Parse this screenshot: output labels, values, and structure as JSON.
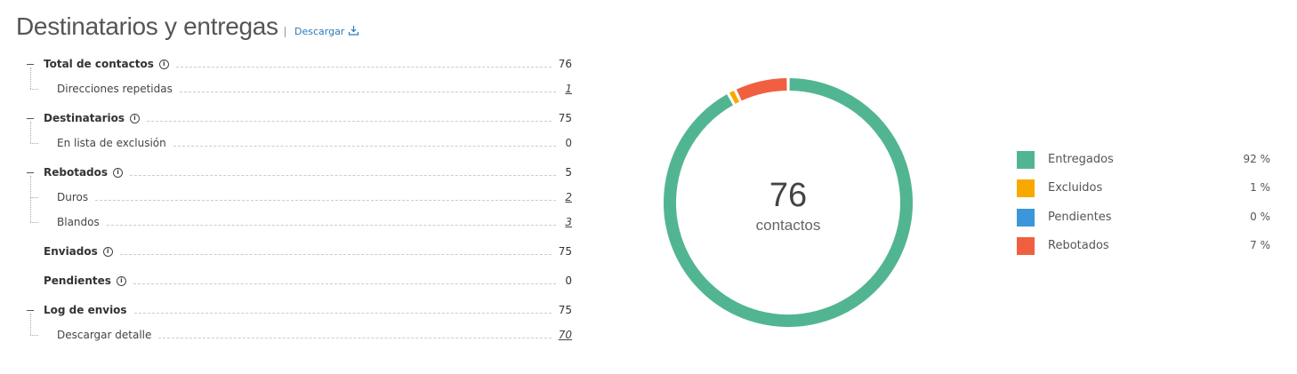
{
  "header": {
    "title": "Destinatarios y entregas",
    "download": "Descargar"
  },
  "metrics": [
    {
      "label": "Total de contactos",
      "value": 76,
      "info": true,
      "children": [
        {
          "label": "Direcciones repetidas",
          "value": 1,
          "link": true
        }
      ]
    },
    {
      "label": "Destinatarios",
      "value": 75,
      "info": true,
      "children": [
        {
          "label": "En lista de exclusión",
          "value": 0,
          "link": false
        }
      ]
    },
    {
      "label": "Rebotados",
      "value": 5,
      "info": true,
      "children": [
        {
          "label": "Duros",
          "value": 2,
          "link": true
        },
        {
          "label": "Blandos",
          "value": 3,
          "link": true
        }
      ]
    },
    {
      "label": "Enviados",
      "value": 75,
      "info": true,
      "children": []
    },
    {
      "label": "Pendientes",
      "value": 0,
      "info": true,
      "children": []
    },
    {
      "label": "Log de envios",
      "value": 75,
      "info": false,
      "children": [
        {
          "label": "Descargar detalle",
          "value": 70,
          "link": true
        }
      ]
    }
  ],
  "chart_data": {
    "type": "donut",
    "center_value": 76,
    "center_label": "contactos",
    "categories": [
      "Entregados",
      "Excluidos",
      "Pendientes",
      "Rebotados"
    ],
    "values": [
      92,
      1,
      0,
      7
    ],
    "value_labels": [
      "92 %",
      "1 %",
      "0 %",
      "7 %"
    ],
    "colors": [
      "#52b592",
      "#f9a800",
      "#3a97d9",
      "#f06040"
    ]
  }
}
